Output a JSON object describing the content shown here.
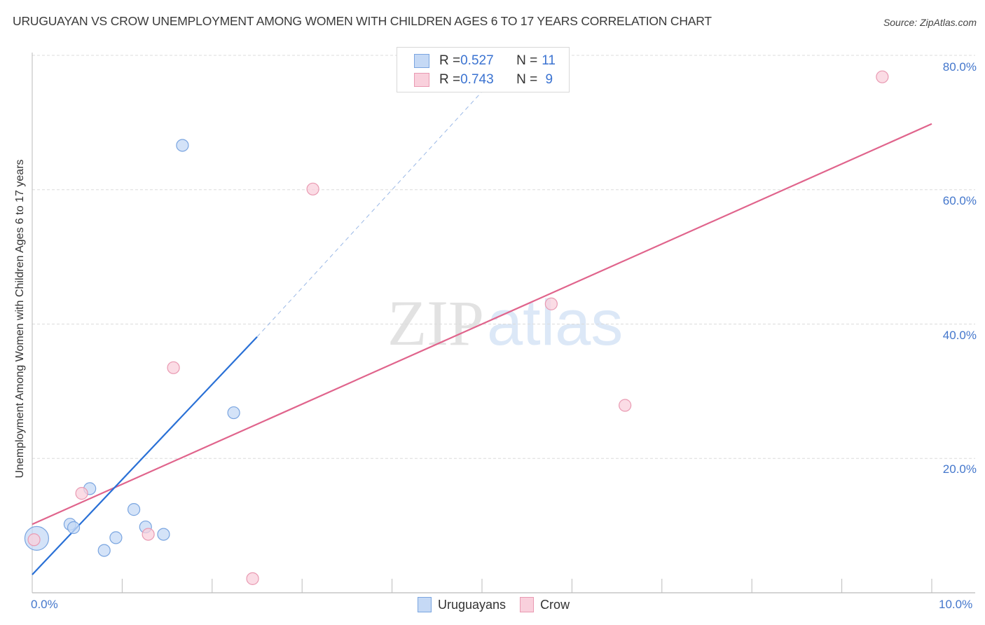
{
  "header": {
    "title": "URUGUAYAN VS CROW UNEMPLOYMENT AMONG WOMEN WITH CHILDREN AGES 6 TO 17 YEARS CORRELATION CHART",
    "source": "Source: ZipAtlas.com"
  },
  "axes": {
    "ylabel": "Unemployment Among Women with Children Ages 6 to 17 years",
    "yticks": [
      "80.0%",
      "60.0%",
      "40.0%",
      "20.0%"
    ],
    "xticks": [
      "0.0%",
      "10.0%"
    ]
  },
  "legend_top": {
    "rows": [
      {
        "r_label": "R = ",
        "r_value": "0.527",
        "n_label": "N = ",
        "n_value": "11"
      },
      {
        "r_label": "R = ",
        "r_value": "0.743",
        "n_label": "N = ",
        "n_value": " 9"
      }
    ]
  },
  "legend_bottom": {
    "items": [
      {
        "label": "Uruguayans"
      },
      {
        "label": "Crow"
      }
    ]
  },
  "watermark": {
    "zip": "ZIP",
    "atlas": "atlas"
  },
  "colors": {
    "uruguayans_fill": "#c5d9f5",
    "uruguayans_stroke": "#7aa5e0",
    "uruguayans_line": "#2970d6",
    "crow_fill": "#f9d0dc",
    "crow_stroke": "#e99ab2",
    "crow_line": "#e0648c",
    "tick_text": "#4477cc"
  },
  "chart_data": {
    "type": "scatter",
    "title": "URUGUAYAN VS CROW UNEMPLOYMENT AMONG WOMEN WITH CHILDREN AGES 6 TO 17 YEARS CORRELATION CHART",
    "xlabel": "",
    "ylabel": "Unemployment Among Women with Children Ages 6 to 17 years",
    "xlim": [
      0,
      10
    ],
    "ylim": [
      0,
      80
    ],
    "x_unit": "%",
    "y_unit": "%",
    "grid": "horizontal dashed",
    "legend_position": "bottom-center",
    "series": [
      {
        "name": "Uruguayans",
        "R": 0.527,
        "N": 11,
        "points": [
          {
            "x": 0.05,
            "y": 8.1,
            "size": "large"
          },
          {
            "x": 0.42,
            "y": 10.2
          },
          {
            "x": 0.46,
            "y": 9.7
          },
          {
            "x": 0.64,
            "y": 15.5
          },
          {
            "x": 0.8,
            "y": 6.3
          },
          {
            "x": 0.93,
            "y": 8.2
          },
          {
            "x": 1.13,
            "y": 12.4
          },
          {
            "x": 1.26,
            "y": 9.8
          },
          {
            "x": 1.46,
            "y": 8.7
          },
          {
            "x": 1.67,
            "y": 66.6
          },
          {
            "x": 2.24,
            "y": 26.8
          }
        ],
        "trendline": {
          "x0": 0,
          "y0": 2.7,
          "x1": 2.5,
          "y1": 38.1,
          "dashed_extension_to": {
            "x": 5.37,
            "y": 80
          }
        }
      },
      {
        "name": "Crow",
        "R": 0.743,
        "N": 9,
        "points": [
          {
            "x": 0.02,
            "y": 7.9
          },
          {
            "x": 0.55,
            "y": 14.8
          },
          {
            "x": 1.29,
            "y": 8.7
          },
          {
            "x": 1.57,
            "y": 33.5
          },
          {
            "x": 2.45,
            "y": 2.1
          },
          {
            "x": 3.12,
            "y": 60.1
          },
          {
            "x": 5.77,
            "y": 43.0
          },
          {
            "x": 6.59,
            "y": 27.9
          },
          {
            "x": 9.45,
            "y": 76.8
          }
        ],
        "trendline": {
          "x0": 0,
          "y0": 10.2,
          "x1": 10,
          "y1": 69.8
        }
      }
    ]
  }
}
